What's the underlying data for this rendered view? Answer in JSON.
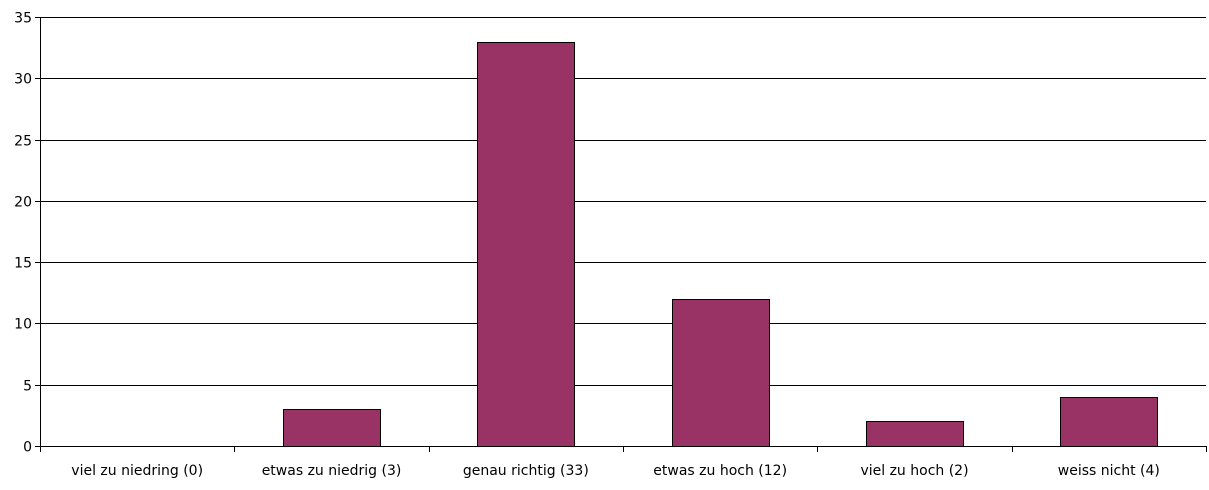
{
  "chart_data": {
    "type": "bar",
    "title": "",
    "xlabel": "",
    "ylabel": "",
    "categories": [
      "viel zu niedring (0)",
      "etwas zu niedrig (3)",
      "genau richtig (33)",
      "etwas zu hoch (12)",
      "viel zu hoch (2)",
      "weiss nicht (4)"
    ],
    "values": [
      0,
      3,
      33,
      12,
      2,
      4
    ],
    "ylim": [
      0,
      35
    ],
    "yticks": [
      0,
      5,
      10,
      15,
      20,
      25,
      30,
      35
    ],
    "grid": true,
    "legend": "none",
    "bar_color": "#993366",
    "bar_edge_color": "#000000",
    "grid_color": "#000000"
  }
}
